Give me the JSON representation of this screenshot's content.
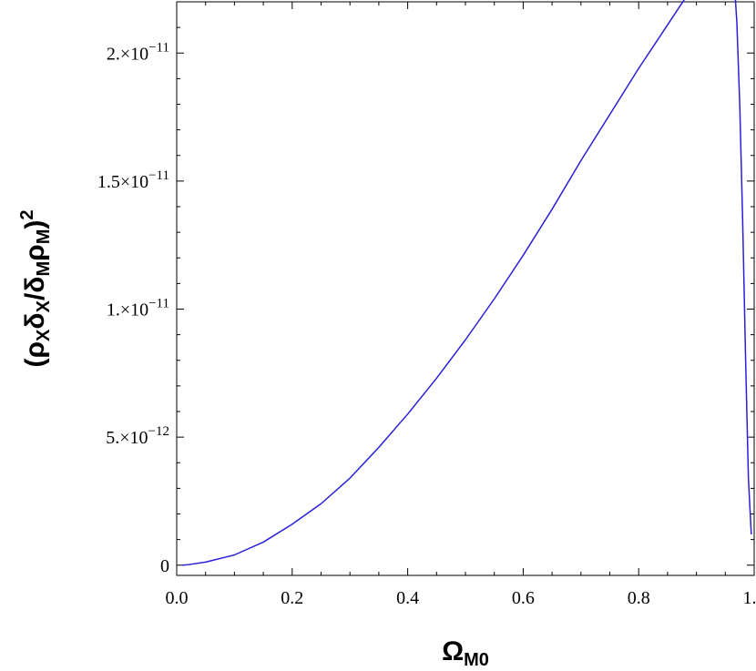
{
  "chart_data": {
    "type": "line",
    "title": "",
    "xlabel": {
      "base": "Ω",
      "sub": "M0"
    },
    "ylabel": {
      "parts": [
        {
          "t": "(ρ"
        },
        {
          "t": "X",
          "sub": true
        },
        {
          "t": "δ"
        },
        {
          "t": "X",
          "sub": true
        },
        {
          "t": "/δ"
        },
        {
          "t": "M",
          "sub": true
        },
        {
          "t": "ρ"
        },
        {
          "t": "M",
          "sub": true
        },
        {
          "t": ")"
        },
        {
          "t": "2",
          "sup": true
        }
      ]
    },
    "xlim": [
      0.0,
      1.0
    ],
    "ylim": [
      -4e-13,
      2.2e-11
    ],
    "x_ticks": [
      {
        "value": 0.0,
        "label": "0.0"
      },
      {
        "value": 0.2,
        "label": "0.2"
      },
      {
        "value": 0.4,
        "label": "0.4"
      },
      {
        "value": 0.6,
        "label": "0.6"
      },
      {
        "value": 0.8,
        "label": "0.8"
      },
      {
        "value": 1.0,
        "label": "1.0"
      }
    ],
    "y_ticks": [
      {
        "value": 0,
        "mant": "0",
        "exp": ""
      },
      {
        "value": 5e-12,
        "mant": "5.×10",
        "exp": "−12"
      },
      {
        "value": 1e-11,
        "mant": "1.×10",
        "exp": "−11"
      },
      {
        "value": 1.5e-11,
        "mant": "1.5×10",
        "exp": "−11"
      },
      {
        "value": 2e-11,
        "mant": "2.×10",
        "exp": "−11"
      }
    ],
    "grid": false,
    "series": [
      {
        "color": "#2a1fd8",
        "x": [
          0.01,
          0.02,
          0.05,
          0.1,
          0.15,
          0.2,
          0.25,
          0.3,
          0.35,
          0.4,
          0.45,
          0.5,
          0.55,
          0.6,
          0.65,
          0.7,
          0.75,
          0.8,
          0.85,
          0.9,
          0.93,
          0.94,
          0.945,
          0.95,
          0.955,
          0.96,
          0.965,
          0.97,
          0.975,
          0.98,
          0.985,
          0.99,
          0.995
        ],
        "y": [
          0,
          2e-14,
          1.2e-13,
          4e-13,
          9e-13,
          1.6e-12,
          2.4e-12,
          3.4e-12,
          4.6e-12,
          5.9e-12,
          7.3e-12,
          8.8e-12,
          1.04e-11,
          1.21e-11,
          1.39e-11,
          1.58e-11,
          1.76e-11,
          1.94e-11,
          2.11e-11,
          2.28e-11,
          2.38e-11,
          2.41e-11,
          2.43e-11,
          2.44e-11,
          2.43e-11,
          2.39e-11,
          2.3e-11,
          2.12e-11,
          1.8e-11,
          1.35e-11,
          8.2e-12,
          3.4e-12,
          1.2e-12
        ]
      }
    ]
  }
}
